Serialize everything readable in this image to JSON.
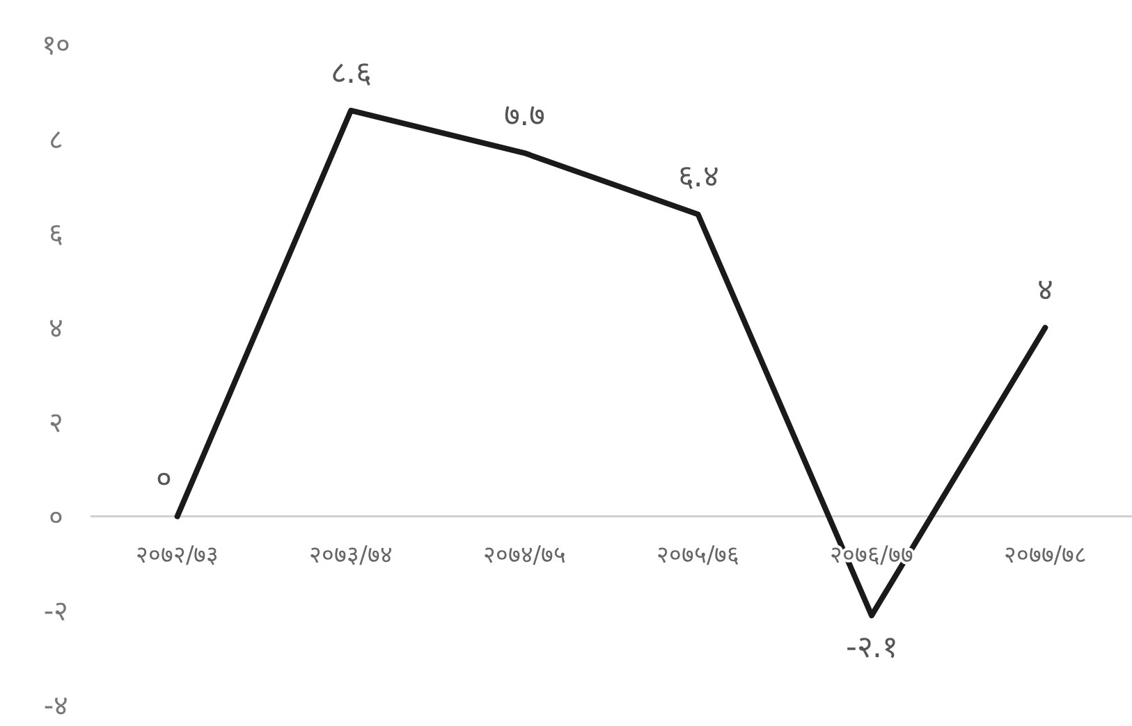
{
  "chart_data": {
    "type": "line",
    "categories": [
      "२०७२/७३",
      "२०७३/७४",
      "२०७४/७५",
      "२०७५/७६",
      "२०७६/७७",
      "२०७७/७८"
    ],
    "series": [
      {
        "color": "#1a1a1a",
        "values": [
          0,
          8.6,
          7.7,
          6.4,
          -2.1,
          4
        ],
        "value_labels": [
          "०",
          "८.६",
          "७.७",
          "६.४",
          "-२.१",
          "४"
        ]
      }
    ],
    "ylim": [
      -4,
      10
    ],
    "yticks": [
      {
        "value": -4,
        "label": "-४"
      },
      {
        "value": -2,
        "label": "-२"
      },
      {
        "value": 0,
        "label": "०"
      },
      {
        "value": 2,
        "label": "२"
      },
      {
        "value": 4,
        "label": "४"
      },
      {
        "value": 6,
        "label": "६"
      },
      {
        "value": 8,
        "label": "८"
      },
      {
        "value": 10,
        "label": "१०"
      }
    ],
    "grid": false,
    "marker": "none",
    "line_style": "solid"
  }
}
